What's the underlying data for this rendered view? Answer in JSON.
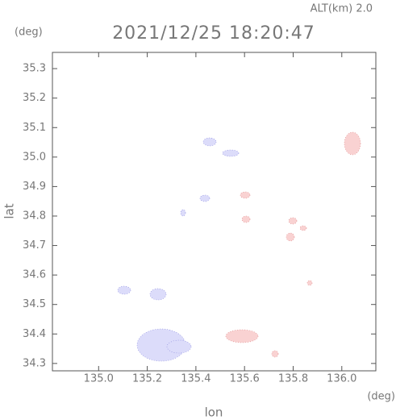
{
  "chart_data": {
    "type": "map",
    "title": "2021/12/25 18:20:47",
    "subtitle": "ALT(km) 2.0",
    "x_label": "lon",
    "x_unit": "(deg)",
    "y_label": "lat",
    "y_unit": "(deg)",
    "xlim": [
      134.81,
      136.14
    ],
    "ylim": [
      34.275,
      35.355
    ],
    "xticks": [
      {
        "value": 135,
        "label": "135.0"
      },
      135.2,
      135.4,
      135.6,
      135.8,
      {
        "value": 136,
        "label": "136.0"
      }
    ],
    "yticks": [
      34.3,
      34.4,
      34.5,
      34.6,
      34.7,
      34.8,
      34.9,
      {
        "value": 35,
        "label": "35.0"
      },
      35.1,
      35.2,
      35.3
    ]
  }
}
